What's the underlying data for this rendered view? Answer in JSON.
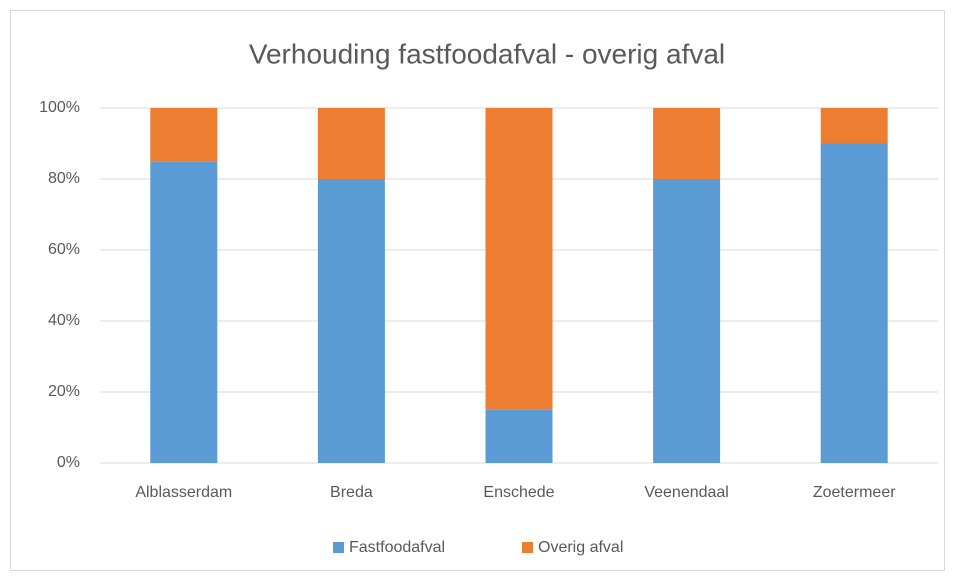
{
  "chart_data": {
    "type": "stacked_bar",
    "title": "Verhouding fastfoodafval - overig afval",
    "categories": [
      "Alblasserdam",
      "Breda",
      "Enschede",
      "Veenendaal",
      "Zoetermeer"
    ],
    "series": [
      {
        "name": "Fastfoodafval",
        "color": "#5b9bd5",
        "values": [
          85,
          80,
          15,
          80,
          90
        ]
      },
      {
        "name": "Overig afval",
        "color": "#ed7d31",
        "values": [
          15,
          20,
          85,
          20,
          10
        ]
      }
    ],
    "ylim": [
      0,
      100
    ],
    "yticks": [
      {
        "value": 0,
        "label": "0%"
      },
      {
        "value": 20,
        "label": "20%"
      },
      {
        "value": 40,
        "label": "40%"
      },
      {
        "value": 60,
        "label": "60%"
      },
      {
        "value": 80,
        "label": "80%"
      },
      {
        "value": 100,
        "label": "100%"
      }
    ],
    "grid": true,
    "legend": "bottom"
  }
}
